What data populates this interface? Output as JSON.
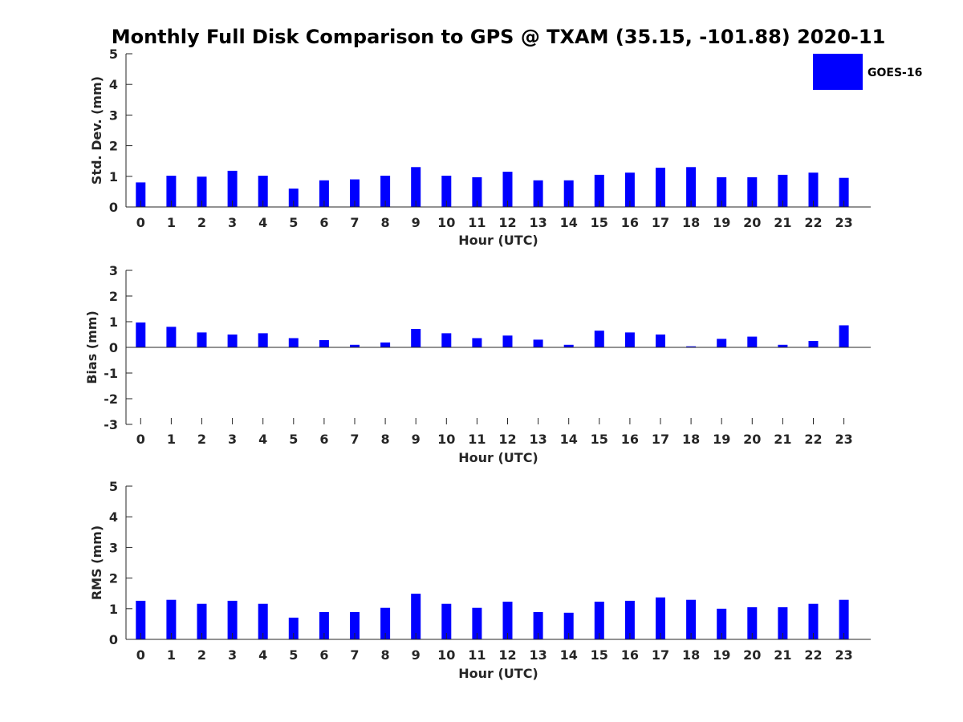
{
  "colors": {
    "bar": "#0000ff",
    "axis": "#262626",
    "background": "#ffffff"
  },
  "chart_data": {
    "type": "bar",
    "title": "Monthly Full Disk Comparison to GPS @ TXAM (35.15, -101.88) 2020-11",
    "legend": {
      "entries": [
        "GOES-16"
      ],
      "placement": "top-right"
    },
    "panels": [
      {
        "xlabel": "Hour (UTC)",
        "ylabel": "Std. Dev. (mm)",
        "ylim": [
          0,
          5
        ],
        "yticks": [
          "0",
          "1",
          "2",
          "3",
          "4",
          "5"
        ],
        "categories": [
          "0",
          "1",
          "2",
          "3",
          "4",
          "5",
          "6",
          "7",
          "8",
          "9",
          "10",
          "11",
          "12",
          "13",
          "14",
          "15",
          "16",
          "17",
          "18",
          "19",
          "20",
          "21",
          "22",
          "23"
        ],
        "series": [
          {
            "name": "GOES-16",
            "values": [
              0.8,
              1.02,
              0.99,
              1.18,
              1.02,
              0.6,
              0.87,
              0.9,
              1.02,
              1.3,
              1.02,
              0.97,
              1.15,
              0.87,
              0.87,
              1.05,
              1.12,
              1.28,
              1.3,
              0.97,
              0.97,
              1.05,
              1.12,
              0.95
            ]
          }
        ]
      },
      {
        "xlabel": "Hour (UTC)",
        "ylabel": "Bias (mm)",
        "ylim": [
          -3,
          3
        ],
        "yticks": [
          "-3",
          "-2",
          "-1",
          "0",
          "1",
          "2",
          "3"
        ],
        "categories": [
          "0",
          "1",
          "2",
          "3",
          "4",
          "5",
          "6",
          "7",
          "8",
          "9",
          "10",
          "11",
          "12",
          "13",
          "14",
          "15",
          "16",
          "17",
          "18",
          "19",
          "20",
          "21",
          "22",
          "23"
        ],
        "series": [
          {
            "name": "GOES-16",
            "values": [
              0.97,
              0.8,
              0.58,
              0.5,
              0.55,
              0.36,
              0.28,
              0.1,
              0.19,
              0.72,
              0.55,
              0.36,
              0.46,
              0.3,
              0.1,
              0.65,
              0.58,
              0.5,
              0.04,
              0.33,
              0.42,
              0.1,
              0.25,
              0.86
            ]
          }
        ]
      },
      {
        "xlabel": "Hour (UTC)",
        "ylabel": "RMS (mm)",
        "ylim": [
          0,
          5
        ],
        "yticks": [
          "0",
          "1",
          "2",
          "3",
          "4",
          "5"
        ],
        "categories": [
          "0",
          "1",
          "2",
          "3",
          "4",
          "5",
          "6",
          "7",
          "8",
          "9",
          "10",
          "11",
          "12",
          "13",
          "14",
          "15",
          "16",
          "17",
          "18",
          "19",
          "20",
          "21",
          "22",
          "23"
        ],
        "series": [
          {
            "name": "GOES-16",
            "values": [
              1.26,
              1.29,
              1.16,
              1.26,
              1.16,
              0.71,
              0.89,
              0.89,
              1.03,
              1.49,
              1.16,
              1.03,
              1.23,
              0.89,
              0.87,
              1.23,
              1.26,
              1.37,
              1.29,
              1.0,
              1.05,
              1.05,
              1.16,
              1.29
            ]
          }
        ]
      }
    ]
  }
}
